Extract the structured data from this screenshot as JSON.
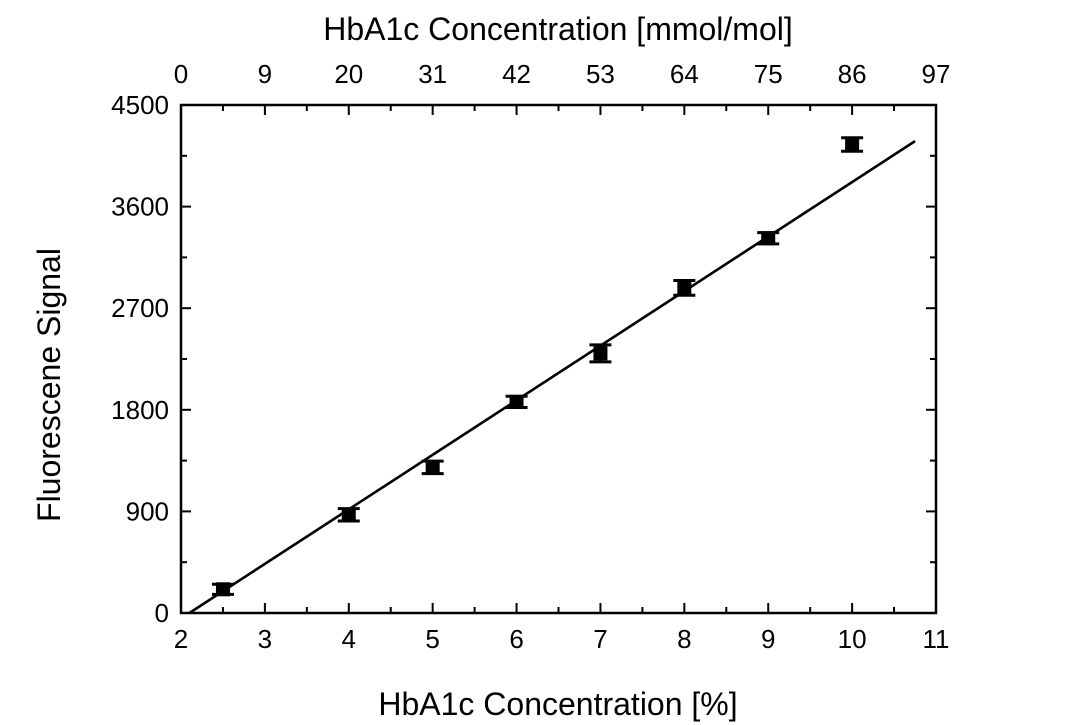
{
  "chart_data": {
    "type": "scatter",
    "title": "",
    "xlabel": "HbA1c Concentration [%]",
    "ylabel": "Fluorescene Signal",
    "x2label": "HbA1c Concentration [mmol/mol]",
    "xlim": [
      2,
      11
    ],
    "ylim": [
      0,
      4500
    ],
    "x_ticks": [
      2,
      3,
      4,
      5,
      6,
      7,
      8,
      9,
      10,
      11
    ],
    "y_ticks": [
      0,
      900,
      1800,
      2700,
      3600,
      4500
    ],
    "x2_tick_labels": [
      "0",
      "9",
      "20",
      "31",
      "42",
      "53",
      "64",
      "75",
      "86",
      "97"
    ],
    "grid": false,
    "series": [
      {
        "x": [
          2.5,
          4,
          5,
          6,
          7,
          8,
          9,
          10
        ],
        "y": [
          210,
          870,
          1290,
          1870,
          2300,
          2880,
          3320,
          4150
        ],
        "error": [
          45,
          55,
          55,
          50,
          75,
          65,
          50,
          60
        ]
      }
    ],
    "fit_line": {
      "x": [
        2.1,
        10.75
      ],
      "y": [
        0,
        4180
      ]
    }
  }
}
